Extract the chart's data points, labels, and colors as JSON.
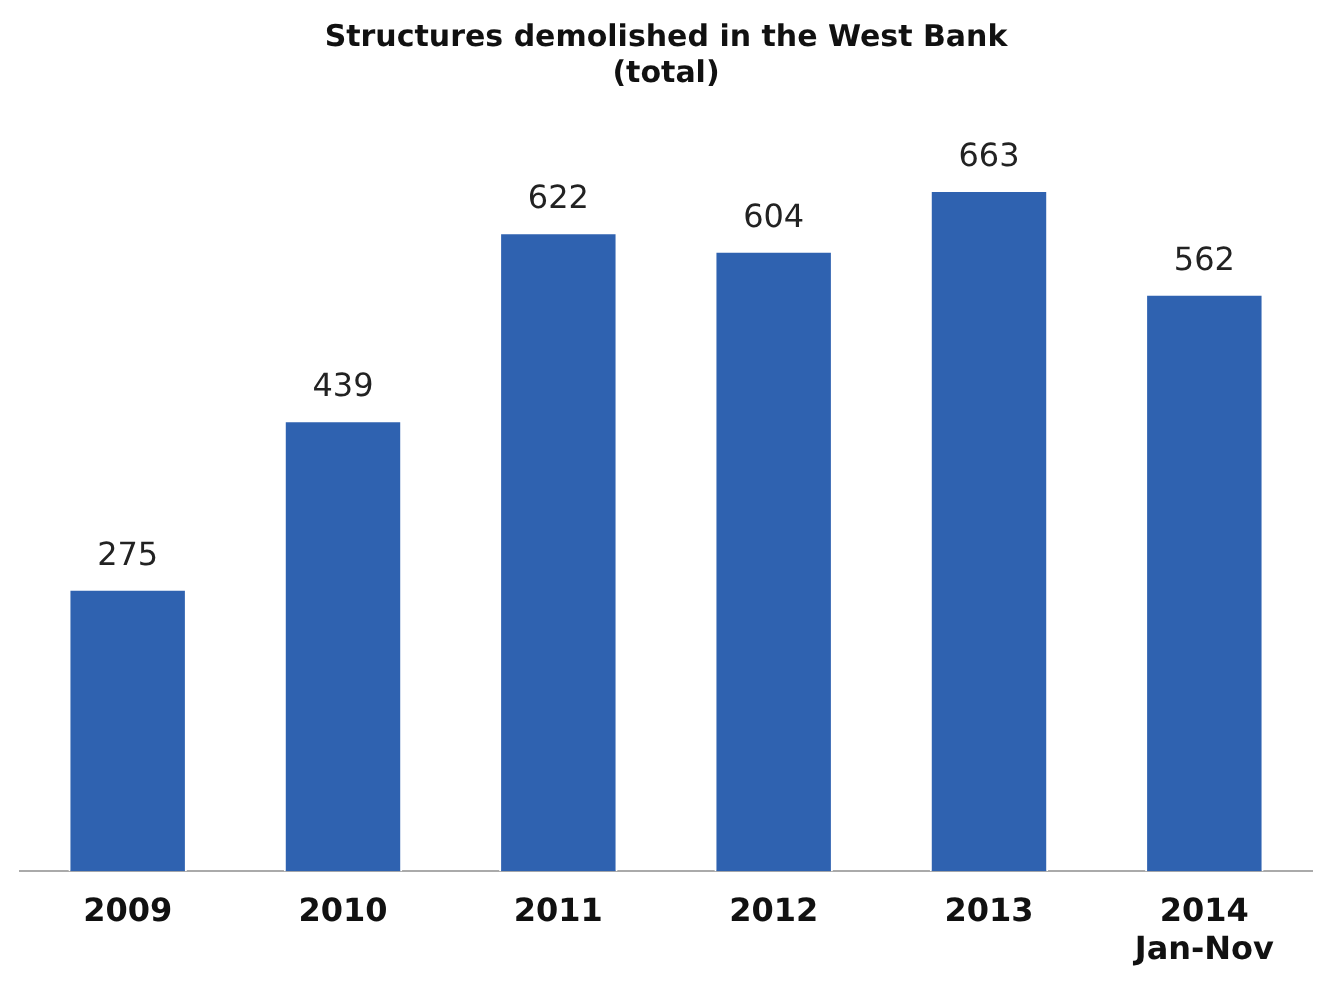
{
  "chart_data": {
    "type": "bar",
    "title": "Structures demolished in the West Bank (total)",
    "categories": [
      "2009",
      "2010",
      "2011",
      "2012",
      "2013",
      "2014 Jan-Nov"
    ],
    "values": [
      275,
      439,
      622,
      604,
      663,
      562
    ],
    "color": "#2f62b0",
    "data_labels": true,
    "grid": false,
    "legend": false
  }
}
